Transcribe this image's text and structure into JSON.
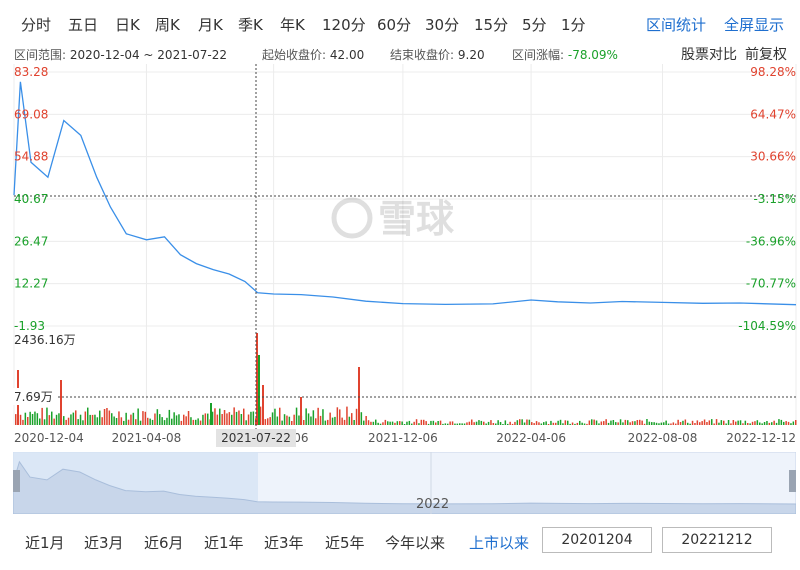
{
  "periods": [
    "分时",
    "五日",
    "日K",
    "周K",
    "月K",
    "季K",
    "年K",
    "120分",
    "60分",
    "30分",
    "15分",
    "5分",
    "1分"
  ],
  "right_links": [
    "区间统计",
    "全屏显示"
  ],
  "info": {
    "range_label": "区间范围:",
    "range_value": "2020-12-04 ~ 2021-07-22",
    "open_label": "起始收盘价:",
    "open_value": "42.00",
    "close_label": "结束收盘价:",
    "close_value": "9.20",
    "change_label": "区间涨幅:",
    "change_value": "-78.09%",
    "compare": "股票对比",
    "adjust": "前复权"
  },
  "colors": {
    "up": "#e0432f",
    "down": "#1aa12a",
    "line": "#3a8fe8",
    "link": "#1f6fcf"
  },
  "chart_data": {
    "type": "line",
    "title": "",
    "xlabel": "",
    "ylabel": "",
    "price_ticks": [
      "83.28",
      "69.08",
      "54.88",
      "40.67",
      "26.47",
      "12.27",
      "-1.93"
    ],
    "pct_ticks": [
      "98.28%",
      "64.47%",
      "30.66%",
      "-3.15%",
      "-36.96%",
      "-70.77%",
      "-104.59%"
    ],
    "ylim": [
      -1.93,
      83.28
    ],
    "x_ticks": [
      "2020-12-04",
      "2021-04-08",
      "2021-08-06",
      "2021-12-06",
      "2022-04-06",
      "2022-08-08",
      "2022-12-12"
    ],
    "crosshair_date": "2021-07-22",
    "volume_max_label": "2436.16万",
    "volume_cursor_label": "7.69万",
    "watermark": "雪球",
    "x": [
      "2020-12-04",
      "2020-12-10",
      "2020-12-20",
      "2021-01-05",
      "2021-01-20",
      "2021-02-05",
      "2021-02-20",
      "2021-03-05",
      "2021-03-20",
      "2021-04-08",
      "2021-04-25",
      "2021-05-10",
      "2021-05-25",
      "2021-06-10",
      "2021-06-25",
      "2021-07-10",
      "2021-07-22",
      "2021-08-06",
      "2021-09-01",
      "2021-10-01",
      "2021-11-01",
      "2021-12-06",
      "2022-01-15",
      "2022-03-01",
      "2022-04-06",
      "2022-05-01",
      "2022-06-01",
      "2022-07-01",
      "2022-08-08",
      "2022-09-15",
      "2022-10-20",
      "2022-12-12"
    ],
    "y": [
      42.0,
      80.0,
      53.0,
      48.0,
      67.0,
      62.0,
      48.0,
      38.0,
      29.0,
      27.0,
      28.0,
      22.0,
      19.0,
      17.0,
      15.5,
      13.0,
      9.2,
      8.8,
      8.6,
      7.8,
      6.4,
      5.6,
      5.3,
      5.5,
      6.8,
      6.2,
      5.8,
      6.3,
      6.0,
      5.7,
      5.8,
      5.2
    ],
    "price_label_colors": [
      "up",
      "up",
      "up",
      "down",
      "down",
      "down",
      "down"
    ],
    "range_x_label": "2022"
  },
  "range_buttons": [
    "近1月",
    "近3月",
    "近6月",
    "近1年",
    "近3年",
    "近5年",
    "今年以来",
    "上市以来"
  ],
  "active_range": "上市以来",
  "start_date": "20201204",
  "end_date": "20221212"
}
